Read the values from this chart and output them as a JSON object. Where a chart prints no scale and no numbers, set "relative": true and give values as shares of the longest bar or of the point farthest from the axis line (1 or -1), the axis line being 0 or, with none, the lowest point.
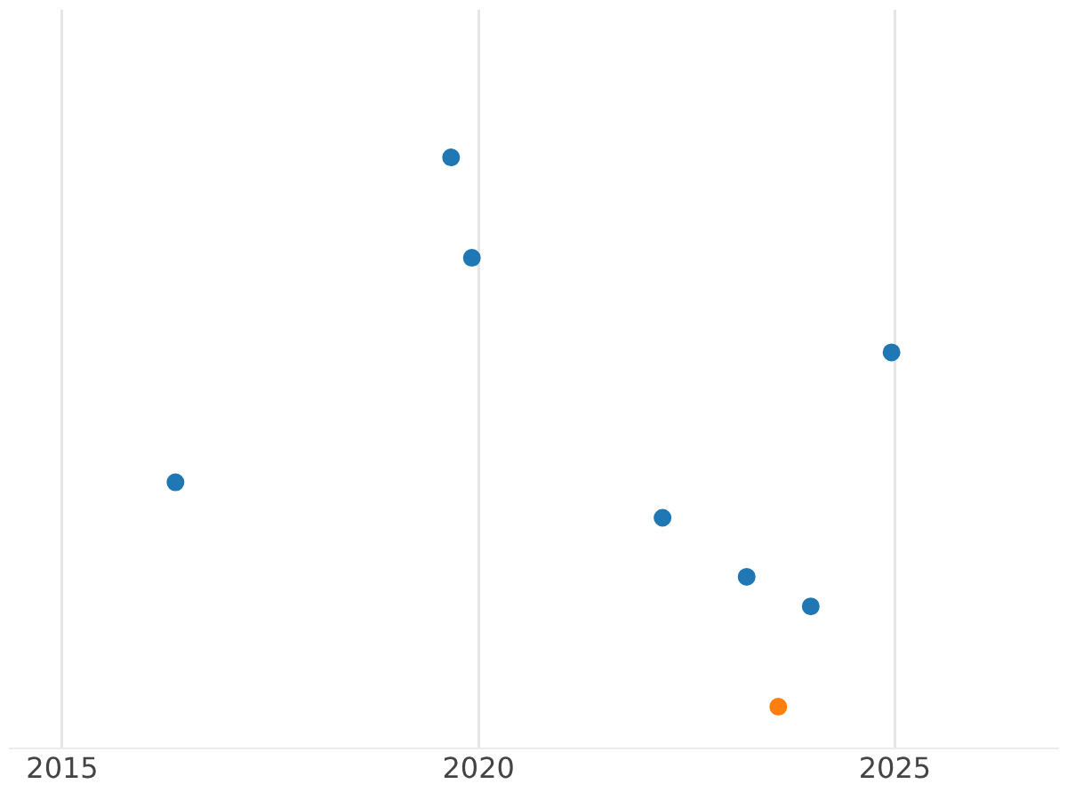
{
  "chart_data": {
    "type": "scatter",
    "relative": true,
    "series": [
      {
        "color": "#1f77b4",
        "x": [
          2016.36,
          2019.67,
          2019.92,
          2022.21,
          2023.22,
          2023.99,
          2024.96
        ],
        "values": [
          0.45,
          1,
          0.83,
          0.39,
          0.29,
          0.24,
          0.67
        ]
      },
      {
        "color": "#ff7f0e",
        "x": [
          2023.6
        ],
        "values": [
          0.07
        ]
      }
    ],
    "xlim": [
      2014.37,
      2026.95
    ],
    "xticks": [
      2015,
      2020,
      2025
    ],
    "grid": "x",
    "marker": "circle"
  }
}
